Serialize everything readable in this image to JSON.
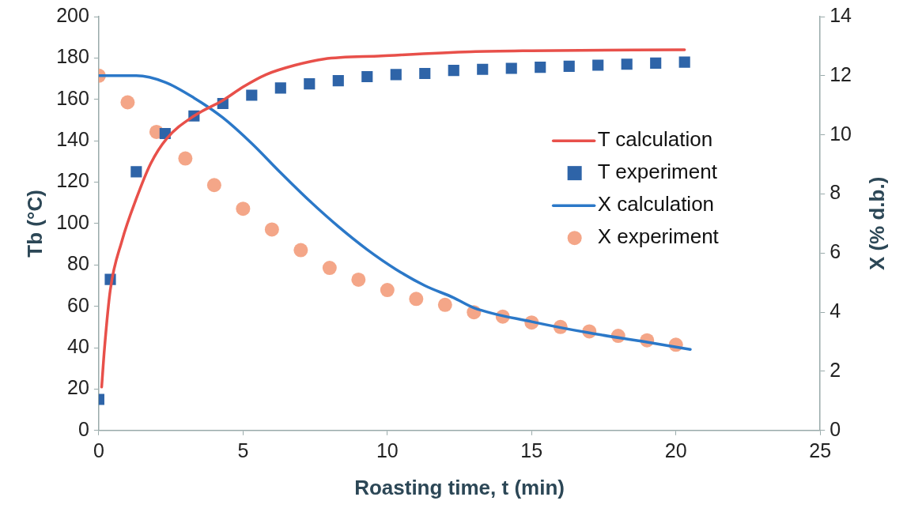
{
  "chart_data": {
    "type": "line",
    "xlabel": "Roasting time, t (min)",
    "ylabel": "Tb (°C)",
    "y2label": "X (% d.b.)",
    "xlim": [
      0,
      25
    ],
    "xticks": [
      0,
      5,
      10,
      15,
      20,
      25
    ],
    "ylim": [
      0,
      200
    ],
    "yticks": [
      0,
      20,
      40,
      60,
      80,
      100,
      120,
      140,
      160,
      180,
      200
    ],
    "y2lim": [
      0,
      14
    ],
    "y2ticks": [
      0,
      2,
      4,
      6,
      8,
      10,
      12,
      14
    ],
    "grid": false,
    "legend": "right",
    "series": [
      {
        "name": "T calculation",
        "color": "#e8504a",
        "marker": "none",
        "line_style": "solid",
        "x": [
          0.1,
          0.2,
          0.4,
          0.8,
          1.3,
          1.8,
          2.35,
          3.3,
          4.3,
          5,
          5.8,
          6.8,
          7.8,
          9.8,
          12.9,
          15,
          20.3
        ],
        "values": [
          21,
          40,
          68,
          91.5,
          112,
          129,
          141,
          152,
          159.5,
          166,
          172,
          176.5,
          179.5,
          181,
          183,
          183.5,
          184
        ]
      },
      {
        "name": "T experiment",
        "type": "scatter",
        "color": "#2e64a8",
        "marker": "square",
        "x": [
          0,
          0.4,
          1.3,
          2.3,
          3.3,
          4.3,
          5.3,
          6.3,
          7.3,
          8.3,
          9.3,
          10.3,
          11.3,
          12.3,
          13.3,
          14.3,
          15.3,
          16.3,
          17.3,
          18.3,
          19.3,
          20.3
        ],
        "values": [
          15,
          73,
          125,
          143.5,
          152,
          158,
          162,
          165.5,
          167.5,
          169,
          171,
          172,
          172.5,
          174,
          174.5,
          175,
          175.5,
          176,
          176.5,
          177,
          177.5,
          178
        ]
      },
      {
        "name": "X calculation",
        "axis": "y2",
        "color": "#2b78c8",
        "marker": "none",
        "line_style": "solid",
        "x": [
          0,
          1.3,
          2.3,
          3.3,
          4.3,
          5.3,
          6.3,
          7.3,
          8.3,
          9.3,
          10.3,
          11.3,
          12.3,
          13,
          15,
          17,
          19,
          20.5
        ],
        "values": [
          12.0,
          12.0,
          11.78,
          11.25,
          10.58,
          9.71,
          8.72,
          7.77,
          6.9,
          6.12,
          5.45,
          4.9,
          4.49,
          4.15,
          3.68,
          3.3,
          2.99,
          2.74
        ]
      },
      {
        "name": "X experiment",
        "type": "scatter",
        "axis": "y2",
        "color": "#f4a688",
        "marker": "circle",
        "x": [
          0,
          1,
          2,
          3,
          4,
          5,
          6,
          7,
          8,
          9,
          10,
          11,
          12,
          13,
          14,
          15,
          16,
          17,
          18,
          19,
          20
        ],
        "values": [
          12.0,
          11.1,
          10.1,
          9.2,
          8.3,
          7.5,
          6.8,
          6.1,
          5.5,
          5.1,
          4.75,
          4.45,
          4.25,
          4.0,
          3.85,
          3.65,
          3.5,
          3.35,
          3.2,
          3.05,
          2.9
        ]
      }
    ]
  }
}
